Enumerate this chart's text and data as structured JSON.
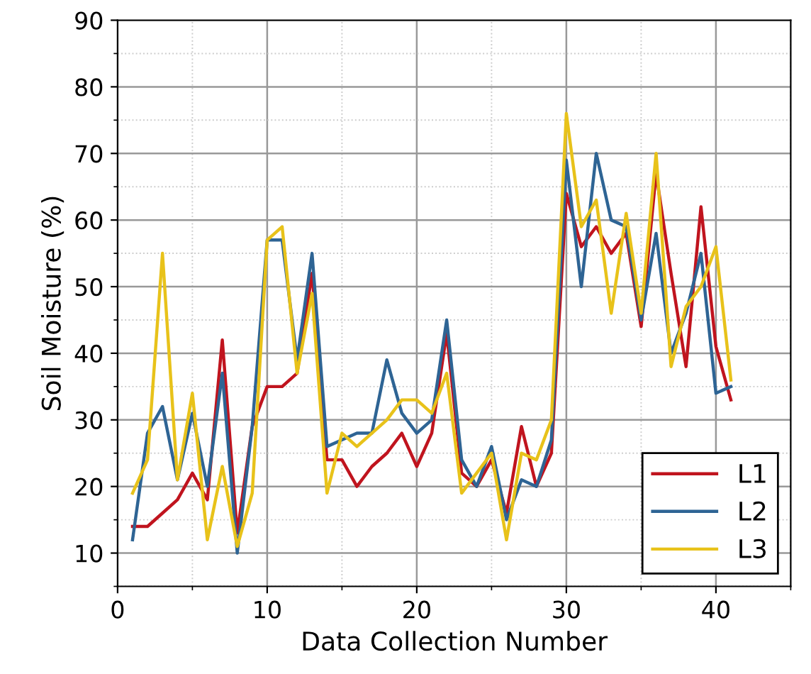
{
  "chart_data": {
    "type": "line",
    "xlabel": "Data Collection Number",
    "ylabel": "Soil Moisture (%)",
    "x": [
      1,
      2,
      3,
      4,
      5,
      6,
      7,
      8,
      9,
      10,
      11,
      12,
      13,
      14,
      15,
      16,
      17,
      18,
      19,
      20,
      21,
      22,
      23,
      24,
      25,
      26,
      27,
      28,
      29,
      30,
      31,
      32,
      33,
      34,
      35,
      36,
      37,
      38,
      39,
      40,
      41
    ],
    "series": [
      {
        "name": "L1",
        "color": "#c0141e",
        "values": [
          14,
          14,
          16,
          18,
          22,
          18,
          42,
          13,
          29,
          35,
          35,
          37,
          52,
          24,
          24,
          20,
          23,
          25,
          28,
          23,
          28,
          43,
          22,
          20,
          24,
          16,
          29,
          20,
          25,
          64,
          56,
          59,
          55,
          58,
          44,
          67,
          52,
          38,
          62,
          41,
          33
        ]
      },
      {
        "name": "L2",
        "color": "#2e6494",
        "values": [
          12,
          28,
          32,
          21,
          31,
          20,
          37,
          10,
          29,
          57,
          57,
          39,
          55,
          26,
          27,
          28,
          28,
          39,
          31,
          28,
          30,
          45,
          24,
          20,
          26,
          15,
          21,
          20,
          27,
          69,
          50,
          70,
          60,
          59,
          45,
          58,
          40,
          46,
          55,
          34,
          35
        ]
      },
      {
        "name": "L3",
        "color": "#e8c21a",
        "values": [
          19,
          24,
          55,
          21,
          34,
          12,
          23,
          11,
          19,
          57,
          59,
          37,
          49,
          19,
          28,
          26,
          28,
          30,
          33,
          33,
          31,
          37,
          19,
          22,
          25,
          12,
          25,
          24,
          30,
          76,
          59,
          63,
          46,
          61,
          46,
          70,
          38,
          47,
          50,
          56,
          36
        ]
      }
    ],
    "xlim": [
      0,
      45
    ],
    "ylim": [
      5,
      90
    ],
    "xticks": [
      0,
      10,
      20,
      30,
      40
    ],
    "yticks": [
      10,
      20,
      30,
      40,
      50,
      60,
      70,
      80,
      90
    ],
    "grid": true,
    "legend": "bottom right",
    "line_style": "solid",
    "marker": "none"
  }
}
